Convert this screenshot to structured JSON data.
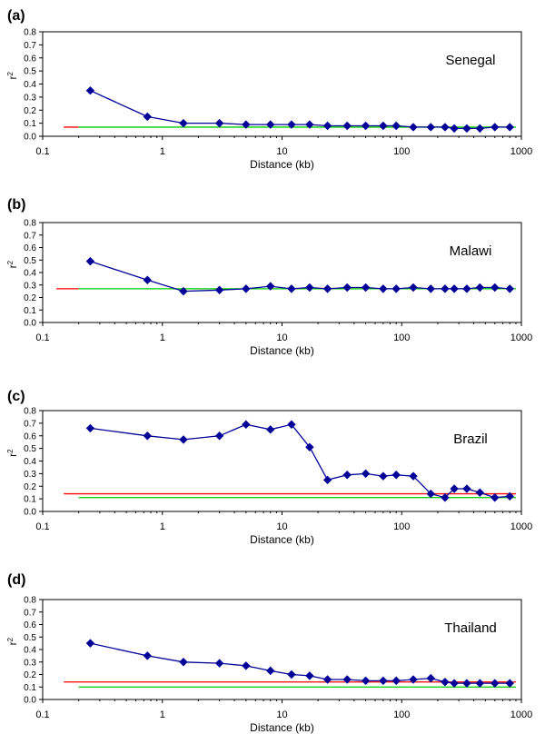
{
  "chart_data": [
    {
      "type": "line",
      "panel_label": "(a)",
      "country": "Senegal",
      "xlabel": "Distance (kb)",
      "ylabel": "r2",
      "xscale": "log",
      "xlim": [
        0.1,
        1000
      ],
      "ylim": [
        0,
        0.8
      ],
      "yticks": [
        "0.0",
        "0.1",
        "0.2",
        "0.3",
        "0.4",
        "0.5",
        "0.6",
        "0.7",
        "0.8"
      ],
      "xticks": [
        "0.1",
        "1",
        "10",
        "100",
        "1000"
      ],
      "series": [
        {
          "name": "r2",
          "color": "#000099",
          "x": [
            0.25,
            0.75,
            1.5,
            3,
            5,
            8,
            12,
            17,
            24,
            35,
            50,
            70,
            90,
            125,
            175,
            230,
            275,
            350,
            450,
            600,
            800
          ],
          "y": [
            0.35,
            0.15,
            0.1,
            0.1,
            0.09,
            0.09,
            0.09,
            0.09,
            0.08,
            0.08,
            0.08,
            0.08,
            0.08,
            0.07,
            0.07,
            0.07,
            0.06,
            0.06,
            0.06,
            0.07,
            0.07
          ]
        }
      ],
      "reference_lines": [
        {
          "name": "red",
          "color": "#ff0000",
          "y": 0.07,
          "x_range": [
            0.15,
            0.2
          ]
        },
        {
          "name": "green",
          "color": "#00cc00",
          "y": 0.07,
          "x_range": [
            0.2,
            900
          ]
        }
      ]
    },
    {
      "type": "line",
      "panel_label": "(b)",
      "country": "Malawi",
      "xlabel": "Distance (kb)",
      "ylabel": "r2",
      "xscale": "log",
      "xlim": [
        0.1,
        1000
      ],
      "ylim": [
        0,
        0.8
      ],
      "yticks": [
        "0.0",
        "0.1",
        "0.2",
        "0.3",
        "0.4",
        "0.5",
        "0.6",
        "0.7",
        "0.8"
      ],
      "xticks": [
        "0.1",
        "1",
        "10",
        "100",
        "1000"
      ],
      "series": [
        {
          "name": "r2",
          "color": "#000099",
          "x": [
            0.25,
            0.75,
            1.5,
            3,
            5,
            8,
            12,
            17,
            24,
            35,
            50,
            70,
            90,
            125,
            175,
            230,
            275,
            350,
            450,
            600,
            800
          ],
          "y": [
            0.49,
            0.34,
            0.25,
            0.26,
            0.27,
            0.29,
            0.27,
            0.28,
            0.27,
            0.28,
            0.28,
            0.27,
            0.27,
            0.28,
            0.27,
            0.27,
            0.27,
            0.27,
            0.28,
            0.28,
            0.27
          ]
        }
      ],
      "reference_lines": [
        {
          "name": "red",
          "color": "#ff0000",
          "y": 0.27,
          "x_range": [
            0.13,
            0.2
          ]
        },
        {
          "name": "green",
          "color": "#00cc00",
          "y": 0.27,
          "x_range": [
            0.2,
            900
          ]
        }
      ]
    },
    {
      "type": "line",
      "panel_label": "(c)",
      "country": "Brazil",
      "xlabel": "Distance (kb)",
      "ylabel": "r2",
      "xscale": "log",
      "xlim": [
        0.1,
        1000
      ],
      "ylim": [
        0,
        0.8
      ],
      "yticks": [
        "0.0",
        "0.1",
        "0.2",
        "0.3",
        "0.4",
        "0.5",
        "0.6",
        "0.7",
        "0.8"
      ],
      "xticks": [
        "0.1",
        "1",
        "10",
        "100",
        "1000"
      ],
      "series": [
        {
          "name": "r2",
          "color": "#000099",
          "x": [
            0.25,
            0.75,
            1.5,
            3,
            5,
            8,
            12,
            17,
            24,
            35,
            50,
            70,
            90,
            125,
            175,
            230,
            275,
            350,
            450,
            600,
            800
          ],
          "y": [
            0.66,
            0.6,
            0.57,
            0.6,
            0.69,
            0.65,
            0.69,
            0.51,
            0.25,
            0.29,
            0.3,
            0.28,
            0.29,
            0.28,
            0.14,
            0.11,
            0.18,
            0.18,
            0.15,
            0.11,
            0.12
          ]
        }
      ],
      "reference_lines": [
        {
          "name": "red",
          "color": "#ff0000",
          "y": 0.14,
          "x_range": [
            0.15,
            900
          ]
        },
        {
          "name": "green",
          "color": "#00cc00",
          "y": 0.11,
          "x_range": [
            0.2,
            900
          ]
        }
      ]
    },
    {
      "type": "line",
      "panel_label": "(d)",
      "country": "Thailand",
      "xlabel": "Distance (kb)",
      "ylabel": "r2",
      "xscale": "log",
      "xlim": [
        0.1,
        1000
      ],
      "ylim": [
        0,
        0.8
      ],
      "yticks": [
        "0.0",
        "0.1",
        "0.2",
        "0.3",
        "0.4",
        "0.5",
        "0.6",
        "0.7",
        "0.8"
      ],
      "xticks": [
        "0.1",
        "1",
        "10",
        "100",
        "1000"
      ],
      "series": [
        {
          "name": "r2",
          "color": "#000099",
          "x": [
            0.25,
            0.75,
            1.5,
            3,
            5,
            8,
            12,
            17,
            24,
            35,
            50,
            70,
            90,
            125,
            175,
            230,
            275,
            350,
            450,
            600,
            800
          ],
          "y": [
            0.45,
            0.35,
            0.3,
            0.29,
            0.27,
            0.23,
            0.2,
            0.19,
            0.16,
            0.16,
            0.15,
            0.15,
            0.15,
            0.16,
            0.17,
            0.14,
            0.13,
            0.13,
            0.13,
            0.13,
            0.13
          ]
        }
      ],
      "reference_lines": [
        {
          "name": "red",
          "color": "#ff0000",
          "y": 0.14,
          "x_range": [
            0.15,
            900
          ]
        },
        {
          "name": "green",
          "color": "#00cc00",
          "y": 0.1,
          "x_range": [
            0.2,
            900
          ]
        }
      ]
    }
  ]
}
